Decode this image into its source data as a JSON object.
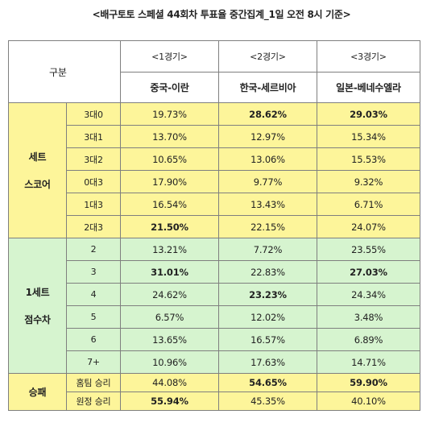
{
  "title": "<배구토토 스페셜 44회차 투표율 중간집계_1일 오전 8시 기준>",
  "header": {
    "gubun": "구분",
    "games": [
      {
        "no": "<1경기>",
        "match": "중국-이란"
      },
      {
        "no": "<2경기>",
        "match": "한국-세르비아"
      },
      {
        "no": "<3경기>",
        "match": "일본-베네수엘라"
      }
    ]
  },
  "groups": [
    {
      "label_lines": [
        "세트",
        "스코어"
      ],
      "color": "#fdf59a",
      "rows": [
        {
          "label": "3대0",
          "values": [
            "19.73%",
            "28.62%",
            "29.03%"
          ],
          "bold": [
            false,
            true,
            true
          ]
        },
        {
          "label": "3대1",
          "values": [
            "13.70%",
            "12.97%",
            "15.34%"
          ],
          "bold": [
            false,
            false,
            false
          ]
        },
        {
          "label": "3대2",
          "values": [
            "10.65%",
            "13.06%",
            "15.53%"
          ],
          "bold": [
            false,
            false,
            false
          ]
        },
        {
          "label": "0대3",
          "values": [
            "17.90%",
            "9.77%",
            "9.32%"
          ],
          "bold": [
            false,
            false,
            false
          ]
        },
        {
          "label": "1대3",
          "values": [
            "16.54%",
            "13.43%",
            "6.71%"
          ],
          "bold": [
            false,
            false,
            false
          ]
        },
        {
          "label": "2대3",
          "values": [
            "21.50%",
            "22.15%",
            "24.07%"
          ],
          "bold": [
            true,
            false,
            false
          ]
        }
      ]
    },
    {
      "label_lines": [
        "1세트",
        "점수차"
      ],
      "color": "#d6f4cf",
      "rows": [
        {
          "label": "2",
          "values": [
            "13.21%",
            "7.72%",
            "23.55%"
          ],
          "bold": [
            false,
            false,
            false
          ]
        },
        {
          "label": "3",
          "values": [
            "31.01%",
            "22.83%",
            "27.03%"
          ],
          "bold": [
            true,
            false,
            true
          ]
        },
        {
          "label": "4",
          "values": [
            "24.62%",
            "23.23%",
            "24.34%"
          ],
          "bold": [
            false,
            true,
            false
          ]
        },
        {
          "label": "5",
          "values": [
            "6.57%",
            "12.02%",
            "3.48%"
          ],
          "bold": [
            false,
            false,
            false
          ]
        },
        {
          "label": "6",
          "values": [
            "13.65%",
            "16.57%",
            "6.89%"
          ],
          "bold": [
            false,
            false,
            false
          ]
        },
        {
          "label": "7+",
          "values": [
            "10.96%",
            "17.63%",
            "14.71%"
          ],
          "bold": [
            false,
            false,
            false
          ]
        }
      ]
    },
    {
      "label_lines": [
        "승패"
      ],
      "color": "#fdf59a",
      "rows": [
        {
          "label": "홈팀 승리",
          "values": [
            "44.08%",
            "54.65%",
            "59.90%"
          ],
          "bold": [
            false,
            true,
            true
          ]
        },
        {
          "label": "원정 승리",
          "values": [
            "55.94%",
            "45.35%",
            "40.10%"
          ],
          "bold": [
            true,
            false,
            false
          ]
        }
      ]
    }
  ]
}
